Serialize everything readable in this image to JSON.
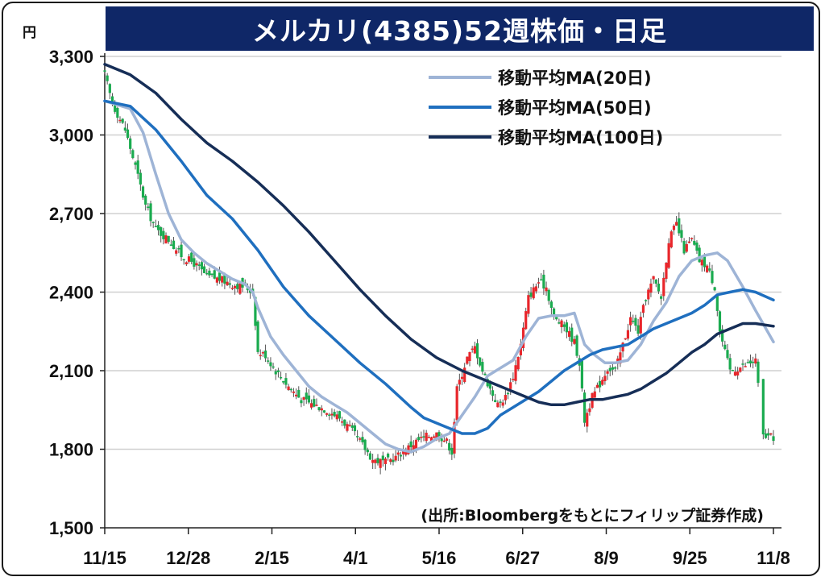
{
  "chart_data": {
    "type": "candlestick",
    "title": "メルカリ(4385)52週株価・日足",
    "y_unit": "円",
    "ylim": [
      1500,
      3300
    ],
    "y_ticks": [
      1500,
      1800,
      2100,
      2400,
      2700,
      3000,
      3300
    ],
    "y_tick_labels": [
      "1,500",
      "1,800",
      "2,100",
      "2,400",
      "2,700",
      "3,000",
      "3,300"
    ],
    "x_tick_labels": [
      "11/15",
      "12/28",
      "2/15",
      "4/1",
      "5/16",
      "6/27",
      "8/9",
      "9/25",
      "11/8"
    ],
    "num_days": 244,
    "grid": "horizontal",
    "legend_position": "top-right",
    "source": "(出所:Bloombergをもとにフィリップ証券作成)",
    "colors": {
      "up": "#e8262b",
      "down": "#1aab4f",
      "ma20": "#9eb4d6",
      "ma50": "#1f6fbf",
      "ma100": "#162e57",
      "title_bg": "#0f2767"
    },
    "close_anchors": [
      [
        0,
        3230
      ],
      [
        3,
        3120
      ],
      [
        8,
        3020
      ],
      [
        12,
        2880
      ],
      [
        16,
        2730
      ],
      [
        20,
        2640
      ],
      [
        25,
        2600
      ],
      [
        30,
        2540
      ],
      [
        35,
        2510
      ],
      [
        40,
        2460
      ],
      [
        45,
        2450
      ],
      [
        50,
        2430
      ],
      [
        55,
        2420
      ],
      [
        58,
        2400
      ],
      [
        60,
        2170
      ],
      [
        63,
        2160
      ],
      [
        67,
        2100
      ],
      [
        72,
        2040
      ],
      [
        77,
        1990
      ],
      [
        82,
        1970
      ],
      [
        87,
        1950
      ],
      [
        92,
        1920
      ],
      [
        96,
        1880
      ],
      [
        100,
        1830
      ],
      [
        105,
        1760
      ],
      [
        110,
        1750
      ],
      [
        114,
        1770
      ],
      [
        118,
        1800
      ],
      [
        122,
        1830
      ],
      [
        126,
        1850
      ],
      [
        130,
        1860
      ],
      [
        134,
        1830
      ],
      [
        136,
        1790
      ],
      [
        138,
        2030
      ],
      [
        142,
        2150
      ],
      [
        145,
        2190
      ],
      [
        148,
        2100
      ],
      [
        151,
        2030
      ],
      [
        154,
        1970
      ],
      [
        157,
        2000
      ],
      [
        160,
        2080
      ],
      [
        163,
        2200
      ],
      [
        166,
        2380
      ],
      [
        170,
        2440
      ],
      [
        173,
        2420
      ],
      [
        176,
        2300
      ],
      [
        180,
        2270
      ],
      [
        184,
        2210
      ],
      [
        186,
        2130
      ],
      [
        188,
        1910
      ],
      [
        191,
        2000
      ],
      [
        194,
        2050
      ],
      [
        197,
        2110
      ],
      [
        200,
        2100
      ],
      [
        203,
        2200
      ],
      [
        206,
        2300
      ],
      [
        209,
        2250
      ],
      [
        212,
        2380
      ],
      [
        215,
        2450
      ],
      [
        218,
        2380
      ],
      [
        221,
        2600
      ],
      [
        224,
        2660
      ],
      [
        227,
        2560
      ],
      [
        230,
        2600
      ],
      [
        233,
        2520
      ],
      [
        236,
        2500
      ],
      [
        239,
        2420
      ],
      [
        241,
        2250
      ],
      [
        243,
        2170
      ],
      [
        245,
        2100
      ],
      [
        248,
        2110
      ],
      [
        251,
        2120
      ],
      [
        255,
        2140
      ],
      [
        258,
        1850
      ],
      [
        262,
        1845
      ]
    ],
    "series": [
      {
        "name": "移動平均MA(20日)",
        "type": "line",
        "values": [
          [
            0,
            3130
          ],
          [
            10,
            3100
          ],
          [
            15,
            3010
          ],
          [
            20,
            2850
          ],
          [
            25,
            2700
          ],
          [
            30,
            2600
          ],
          [
            35,
            2550
          ],
          [
            40,
            2510
          ],
          [
            45,
            2480
          ],
          [
            50,
            2450
          ],
          [
            55,
            2430
          ],
          [
            58,
            2400
          ],
          [
            60,
            2340
          ],
          [
            65,
            2230
          ],
          [
            70,
            2160
          ],
          [
            75,
            2100
          ],
          [
            80,
            2040
          ],
          [
            85,
            2000
          ],
          [
            90,
            1970
          ],
          [
            95,
            1940
          ],
          [
            100,
            1900
          ],
          [
            105,
            1860
          ],
          [
            110,
            1820
          ],
          [
            115,
            1800
          ],
          [
            120,
            1790
          ],
          [
            125,
            1810
          ],
          [
            130,
            1840
          ],
          [
            135,
            1860
          ],
          [
            140,
            1930
          ],
          [
            145,
            2000
          ],
          [
            150,
            2080
          ],
          [
            155,
            2110
          ],
          [
            160,
            2140
          ],
          [
            165,
            2230
          ],
          [
            170,
            2300
          ],
          [
            175,
            2310
          ],
          [
            180,
            2310
          ],
          [
            184,
            2320
          ],
          [
            188,
            2200
          ],
          [
            192,
            2160
          ],
          [
            196,
            2130
          ],
          [
            200,
            2130
          ],
          [
            205,
            2140
          ],
          [
            210,
            2200
          ],
          [
            215,
            2290
          ],
          [
            220,
            2360
          ],
          [
            225,
            2460
          ],
          [
            230,
            2520
          ],
          [
            235,
            2540
          ],
          [
            240,
            2550
          ],
          [
            244,
            2520
          ],
          [
            250,
            2420
          ],
          [
            255,
            2330
          ],
          [
            262,
            2210
          ]
        ]
      },
      {
        "name": "移動平均MA(50日)",
        "type": "line",
        "values": [
          [
            0,
            3130
          ],
          [
            10,
            3110
          ],
          [
            20,
            3020
          ],
          [
            30,
            2900
          ],
          [
            40,
            2770
          ],
          [
            50,
            2680
          ],
          [
            60,
            2560
          ],
          [
            70,
            2420
          ],
          [
            80,
            2310
          ],
          [
            90,
            2220
          ],
          [
            100,
            2130
          ],
          [
            110,
            2050
          ],
          [
            120,
            1960
          ],
          [
            125,
            1920
          ],
          [
            130,
            1900
          ],
          [
            135,
            1880
          ],
          [
            140,
            1860
          ],
          [
            145,
            1860
          ],
          [
            150,
            1880
          ],
          [
            155,
            1930
          ],
          [
            160,
            1960
          ],
          [
            165,
            1990
          ],
          [
            170,
            2020
          ],
          [
            175,
            2060
          ],
          [
            180,
            2100
          ],
          [
            185,
            2130
          ],
          [
            190,
            2160
          ],
          [
            195,
            2180
          ],
          [
            200,
            2190
          ],
          [
            205,
            2200
          ],
          [
            210,
            2230
          ],
          [
            215,
            2260
          ],
          [
            220,
            2280
          ],
          [
            225,
            2300
          ],
          [
            230,
            2320
          ],
          [
            235,
            2350
          ],
          [
            240,
            2390
          ],
          [
            245,
            2400
          ],
          [
            250,
            2410
          ],
          [
            255,
            2400
          ],
          [
            262,
            2370
          ]
        ]
      },
      {
        "name": "移動平均MA(100日)",
        "type": "line",
        "values": [
          [
            0,
            3270
          ],
          [
            10,
            3230
          ],
          [
            20,
            3160
          ],
          [
            30,
            3060
          ],
          [
            40,
            2970
          ],
          [
            50,
            2900
          ],
          [
            60,
            2820
          ],
          [
            70,
            2730
          ],
          [
            80,
            2630
          ],
          [
            90,
            2520
          ],
          [
            100,
            2410
          ],
          [
            110,
            2310
          ],
          [
            120,
            2220
          ],
          [
            130,
            2150
          ],
          [
            140,
            2100
          ],
          [
            150,
            2060
          ],
          [
            160,
            2020
          ],
          [
            170,
            1980
          ],
          [
            175,
            1970
          ],
          [
            180,
            1970
          ],
          [
            185,
            1980
          ],
          [
            190,
            1990
          ],
          [
            195,
            1990
          ],
          [
            200,
            2000
          ],
          [
            205,
            2010
          ],
          [
            210,
            2030
          ],
          [
            215,
            2060
          ],
          [
            220,
            2090
          ],
          [
            225,
            2130
          ],
          [
            230,
            2170
          ],
          [
            235,
            2200
          ],
          [
            240,
            2240
          ],
          [
            245,
            2260
          ],
          [
            250,
            2280
          ],
          [
            255,
            2280
          ],
          [
            262,
            2270
          ]
        ]
      }
    ]
  }
}
